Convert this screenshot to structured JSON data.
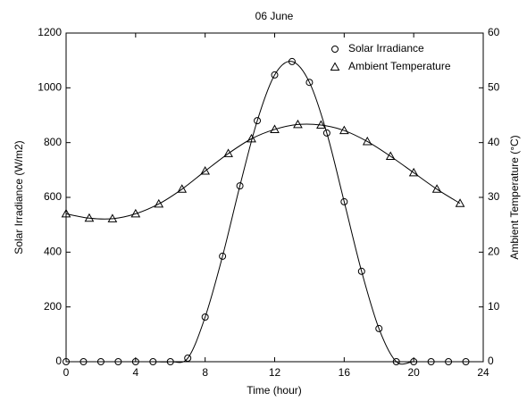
{
  "chart_data": {
    "type": "line",
    "title": "06 June",
    "xlabel": "Time (hour)",
    "ylabel": "Solar Irradiance (W/m2)",
    "y2label": "Ambient Temperature (°C)",
    "xlim": [
      0,
      24
    ],
    "xticks": [
      0,
      4,
      8,
      12,
      16,
      20,
      24
    ],
    "ylim": [
      0,
      1200
    ],
    "yticks": [
      0,
      200,
      400,
      600,
      800,
      1000,
      1200
    ],
    "y2lim": [
      0,
      60
    ],
    "y2ticks": [
      0,
      10,
      20,
      30,
      40,
      50,
      60
    ],
    "legend": "upper right",
    "series": [
      {
        "name": "Solar Irradiance",
        "marker": "circle",
        "color": "#000000",
        "x": [
          0,
          1,
          2,
          3,
          4,
          5,
          6,
          7,
          8,
          9,
          10,
          11,
          12,
          13,
          14,
          15,
          16,
          17,
          18,
          19,
          20,
          21,
          22,
          23
        ],
        "values": [
          0,
          0,
          0,
          0,
          0,
          0,
          0,
          13,
          163,
          385,
          642,
          880,
          1047,
          1096,
          1020,
          835,
          584,
          330,
          121,
          0,
          0,
          0,
          0,
          0
        ]
      },
      {
        "name": "Ambient Temperature",
        "marker": "triangle",
        "color": "#000000",
        "axis": "y2",
        "x": [
          0,
          1.333,
          2.667,
          4,
          5.333,
          6.667,
          8,
          9.333,
          10.667,
          12,
          13.333,
          14.667,
          16,
          17.333,
          18.667,
          20,
          21.333,
          22.667
        ],
        "values": [
          27,
          26.2,
          26.1,
          27,
          28.8,
          31.5,
          34.8,
          38,
          40.7,
          42.4,
          43.3,
          43.2,
          42.2,
          40.2,
          37.5,
          34.5,
          31.5,
          28.9
        ]
      }
    ]
  }
}
